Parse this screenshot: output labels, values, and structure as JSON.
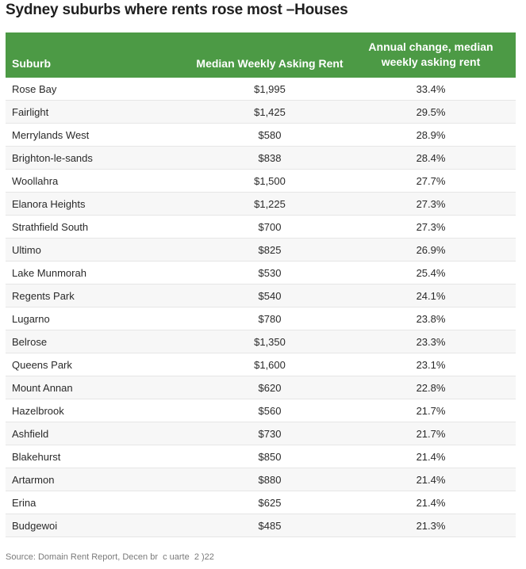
{
  "title": "Sydney suburbs where rents rose most –Houses",
  "table": {
    "headers": {
      "suburb": "Suburb",
      "rent": "Median Weekly Asking Rent",
      "change_line1": "Annual change, median",
      "change_line2": "weekly asking rent"
    },
    "rows": [
      {
        "suburb": "Rose Bay",
        "rent": "$1,995",
        "change": "33.4%"
      },
      {
        "suburb": "Fairlight",
        "rent": "$1,425",
        "change": "29.5%"
      },
      {
        "suburb": "Merrylands West",
        "rent": "$580",
        "change": "28.9%"
      },
      {
        "suburb": "Brighton-le-sands",
        "rent": "$838",
        "change": "28.4%"
      },
      {
        "suburb": "Woollahra",
        "rent": "$1,500",
        "change": "27.7%"
      },
      {
        "suburb": "Elanora Heights",
        "rent": "$1,225",
        "change": "27.3%"
      },
      {
        "suburb": "Strathfield South",
        "rent": "$700",
        "change": "27.3%"
      },
      {
        "suburb": "Ultimo",
        "rent": "$825",
        "change": "26.9%"
      },
      {
        "suburb": "Lake Munmorah",
        "rent": "$530",
        "change": "25.4%"
      },
      {
        "suburb": "Regents Park",
        "rent": "$540",
        "change": "24.1%"
      },
      {
        "suburb": "Lugarno",
        "rent": "$780",
        "change": "23.8%"
      },
      {
        "suburb": "Belrose",
        "rent": "$1,350",
        "change": "23.3%"
      },
      {
        "suburb": "Queens Park",
        "rent": "$1,600",
        "change": "23.1%"
      },
      {
        "suburb": "Mount Annan",
        "rent": "$620",
        "change": "22.8%"
      },
      {
        "suburb": "Hazelbrook",
        "rent": "$560",
        "change": "21.7%"
      },
      {
        "suburb": "Ashfield",
        "rent": "$730",
        "change": "21.7%"
      },
      {
        "suburb": "Blakehurst",
        "rent": "$850",
        "change": "21.4%"
      },
      {
        "suburb": "Artarmon",
        "rent": "$880",
        "change": "21.4%"
      },
      {
        "suburb": "Erina",
        "rent": "$625",
        "change": "21.4%"
      },
      {
        "suburb": "Budgewoi",
        "rent": "$485",
        "change": "21.3%"
      }
    ]
  },
  "source": "Source: Domain Rent Report, Decen br  c uarte  2 )22",
  "colors": {
    "header_bg": "#4c9a45",
    "header_text": "#ffffff",
    "row_alt_bg": "#f7f7f7"
  }
}
